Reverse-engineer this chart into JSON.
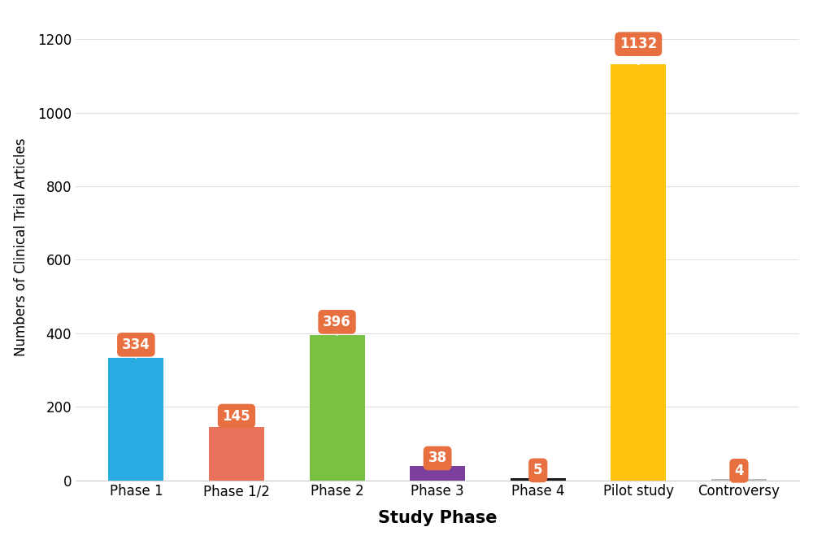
{
  "categories": [
    "Phase 1",
    "Phase 1/2",
    "Phase 2",
    "Phase 3",
    "Phase 4",
    "Pilot study",
    "Controversy"
  ],
  "values": [
    334,
    145,
    396,
    38,
    5,
    1132,
    4
  ],
  "bar_colors": [
    "#29ABE2",
    "#E8735A",
    "#7AC143",
    "#7B3F9E",
    "#1A1A1A",
    "#FFC20E",
    "#BBBBBB"
  ],
  "label_bg_color": "#E87040",
  "label_text_color": "#FFFFFF",
  "xlabel": "Study Phase",
  "ylabel": "Numbers of Clinical Trial Articles",
  "ylim": [
    0,
    1270
  ],
  "yticks": [
    0,
    200,
    400,
    600,
    800,
    1000,
    1200
  ],
  "background_color": "#FFFFFF",
  "grid_color": "#E0E0E0",
  "xlabel_fontsize": 15,
  "ylabel_fontsize": 12,
  "tick_fontsize": 12,
  "label_fontsize": 12,
  "bar_width": 0.55
}
